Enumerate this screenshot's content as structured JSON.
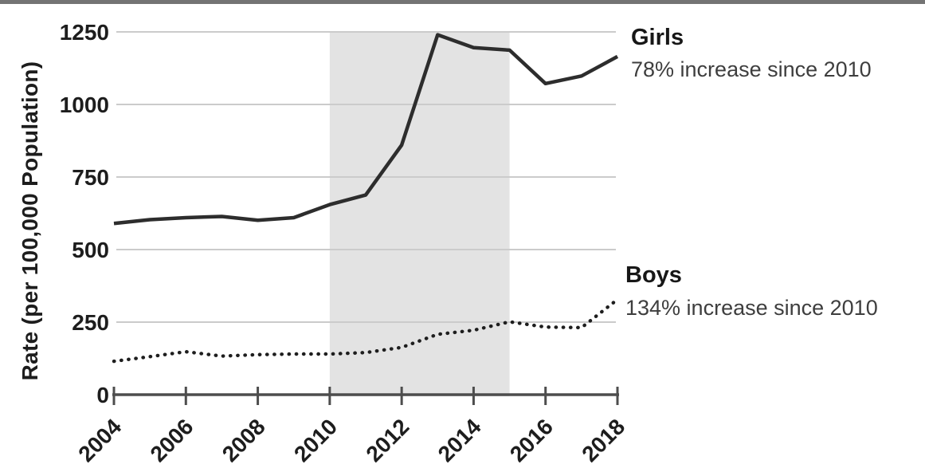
{
  "page": {
    "background": "#ffffff",
    "top_border_color": "#747474"
  },
  "chart_data": {
    "type": "line",
    "title": "",
    "xlabel": "",
    "ylabel": "Rate (per 100,000 Population)",
    "x": [
      2004,
      2005,
      2006,
      2007,
      2008,
      2009,
      2010,
      2011,
      2012,
      2013,
      2014,
      2015,
      2016,
      2017,
      2018
    ],
    "series": [
      {
        "name": "Girls",
        "line_style": "solid",
        "color": "#2d2d2d",
        "values": [
          590,
          603,
          610,
          614,
          601,
          610,
          655,
          688,
          860,
          1240,
          1196,
          1187,
          1072,
          1098,
          1165
        ],
        "annotation": {
          "label": "Girls",
          "subtitle": "78% increase since 2010"
        }
      },
      {
        "name": "Boys",
        "line_style": "dotted",
        "color": "#1e1e1e",
        "values": [
          115,
          131,
          148,
          133,
          138,
          140,
          140,
          145,
          163,
          208,
          222,
          251,
          233,
          231,
          328
        ],
        "annotation": {
          "label": "Boys",
          "subtitle": "134% increase since 2010"
        }
      }
    ],
    "ylim": [
      0,
      1250
    ],
    "yticks": [
      0,
      250,
      500,
      750,
      1000,
      1250
    ],
    "xticks": [
      2004,
      2006,
      2008,
      2010,
      2012,
      2014,
      2016,
      2018
    ],
    "x_tick_rotation_deg": 45,
    "grid": "horizontal-y",
    "gridline_color": "#cbcbcb",
    "axis_color": "#4d4d4d",
    "tick_label_color": "#1d1d1d",
    "shaded_region": {
      "x0": 2010,
      "x1": 2015,
      "color": "#e3e3e3"
    },
    "legend_position": "annotations-right"
  }
}
